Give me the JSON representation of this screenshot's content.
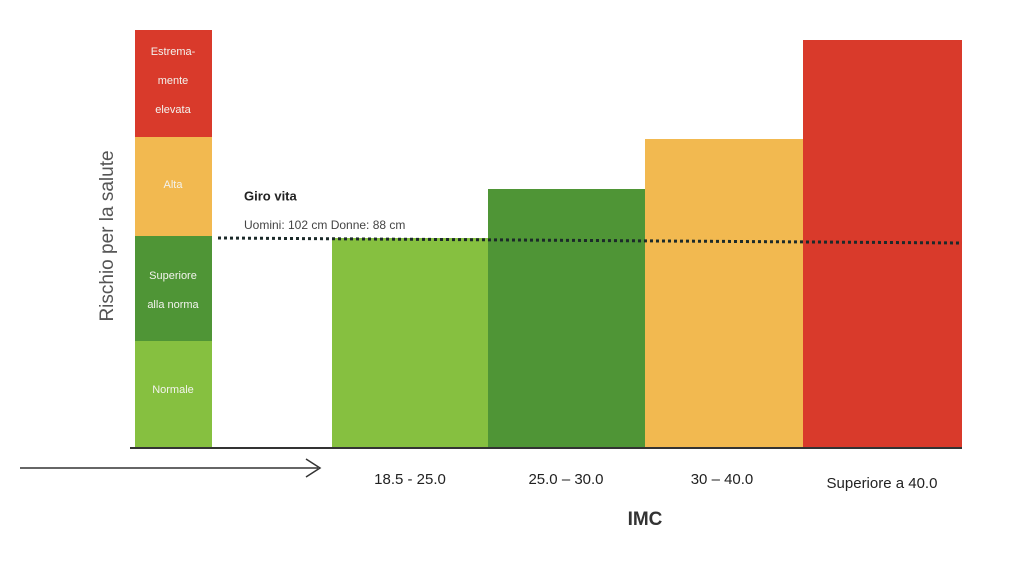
{
  "y_axis_label": "Rischio per la salute",
  "risk_levels": [
    [
      "Estrema-",
      "mente",
      "elevata"
    ],
    [
      "Alta"
    ],
    [
      "Superiore",
      "alla norma"
    ],
    [
      "Normale"
    ]
  ],
  "waist": {
    "title": "Giro vita",
    "text": "Uomini: 102 cm Donne: 88 cm"
  },
  "categories": [
    "18.5 - 25.0",
    "25.0 – 30.0",
    "30 – 40.0",
    "Superiore a 40.0"
  ],
  "x_axis_label": "IMC"
}
